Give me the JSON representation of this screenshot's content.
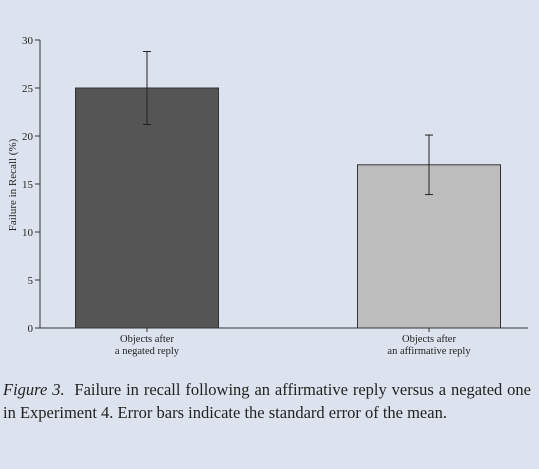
{
  "chart_data": {
    "type": "bar",
    "categories": [
      [
        "Objects after",
        "a negated reply"
      ],
      [
        "Objects after",
        "an affirmative reply"
      ]
    ],
    "values": [
      25,
      17
    ],
    "errors": [
      3.8,
      3.1
    ],
    "bar_colors": [
      "#555555",
      "#bdbdbd"
    ],
    "ylabel": "Failure in Recall (%)",
    "xlabel": "",
    "ylim": [
      0,
      30
    ],
    "yticks": [
      0,
      5,
      10,
      15,
      20,
      25,
      30
    ],
    "grid": false
  },
  "caption": {
    "label": "Figure 3.",
    "text": "Failure in recall following an affirmative reply versus a negated one in Experiment 4. Error bars indicate the standard error of the mean."
  }
}
